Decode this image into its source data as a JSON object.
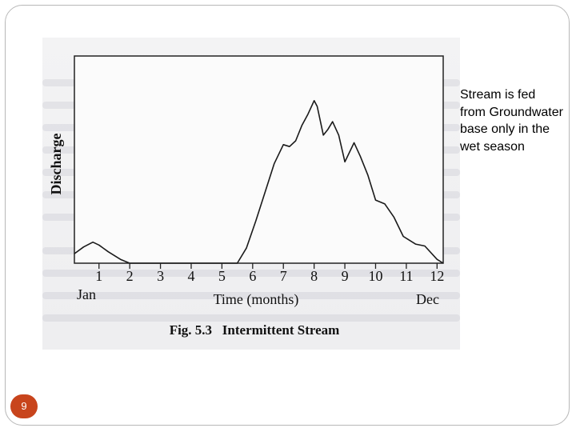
{
  "slide": {
    "note": "Stream is fed from Groundwater base only in the wet season",
    "page_number": "9",
    "accent_color": "#c8441c"
  },
  "chart_data": {
    "type": "line",
    "title": "Fig. 5.3   Intermittent Stream",
    "xlabel": "Time   (months)",
    "ylabel": "Discharge",
    "x_ticks": [
      "1",
      "2",
      "3",
      "4",
      "5",
      "6",
      "7",
      "8",
      "9",
      "10",
      "11",
      "12"
    ],
    "x_start_label": "Jan",
    "x_end_label": "Dec",
    "xlim": [
      0.2,
      12.2
    ],
    "ylim": [
      0,
      1
    ],
    "grid": false,
    "series": [
      {
        "points": [
          [
            0.2,
            0.05
          ],
          [
            0.5,
            0.085
          ],
          [
            0.8,
            0.11
          ],
          [
            1.0,
            0.095
          ],
          [
            1.3,
            0.06
          ],
          [
            1.7,
            0.02
          ],
          [
            2.0,
            0.0
          ],
          [
            5.5,
            0.0
          ],
          [
            5.8,
            0.08
          ],
          [
            6.1,
            0.22
          ],
          [
            6.4,
            0.37
          ],
          [
            6.7,
            0.52
          ],
          [
            7.0,
            0.62
          ],
          [
            7.2,
            0.61
          ],
          [
            7.4,
            0.64
          ],
          [
            7.6,
            0.72
          ],
          [
            7.8,
            0.78
          ],
          [
            8.0,
            0.85
          ],
          [
            8.1,
            0.82
          ],
          [
            8.3,
            0.67
          ],
          [
            8.45,
            0.7
          ],
          [
            8.6,
            0.74
          ],
          [
            8.8,
            0.67
          ],
          [
            9.0,
            0.53
          ],
          [
            9.3,
            0.63
          ],
          [
            9.5,
            0.56
          ],
          [
            9.75,
            0.46
          ],
          [
            10.0,
            0.33
          ],
          [
            10.3,
            0.31
          ],
          [
            10.6,
            0.24
          ],
          [
            10.9,
            0.14
          ],
          [
            11.3,
            0.1
          ],
          [
            11.6,
            0.09
          ],
          [
            12.0,
            0.02
          ],
          [
            12.2,
            0.0
          ]
        ]
      }
    ]
  }
}
